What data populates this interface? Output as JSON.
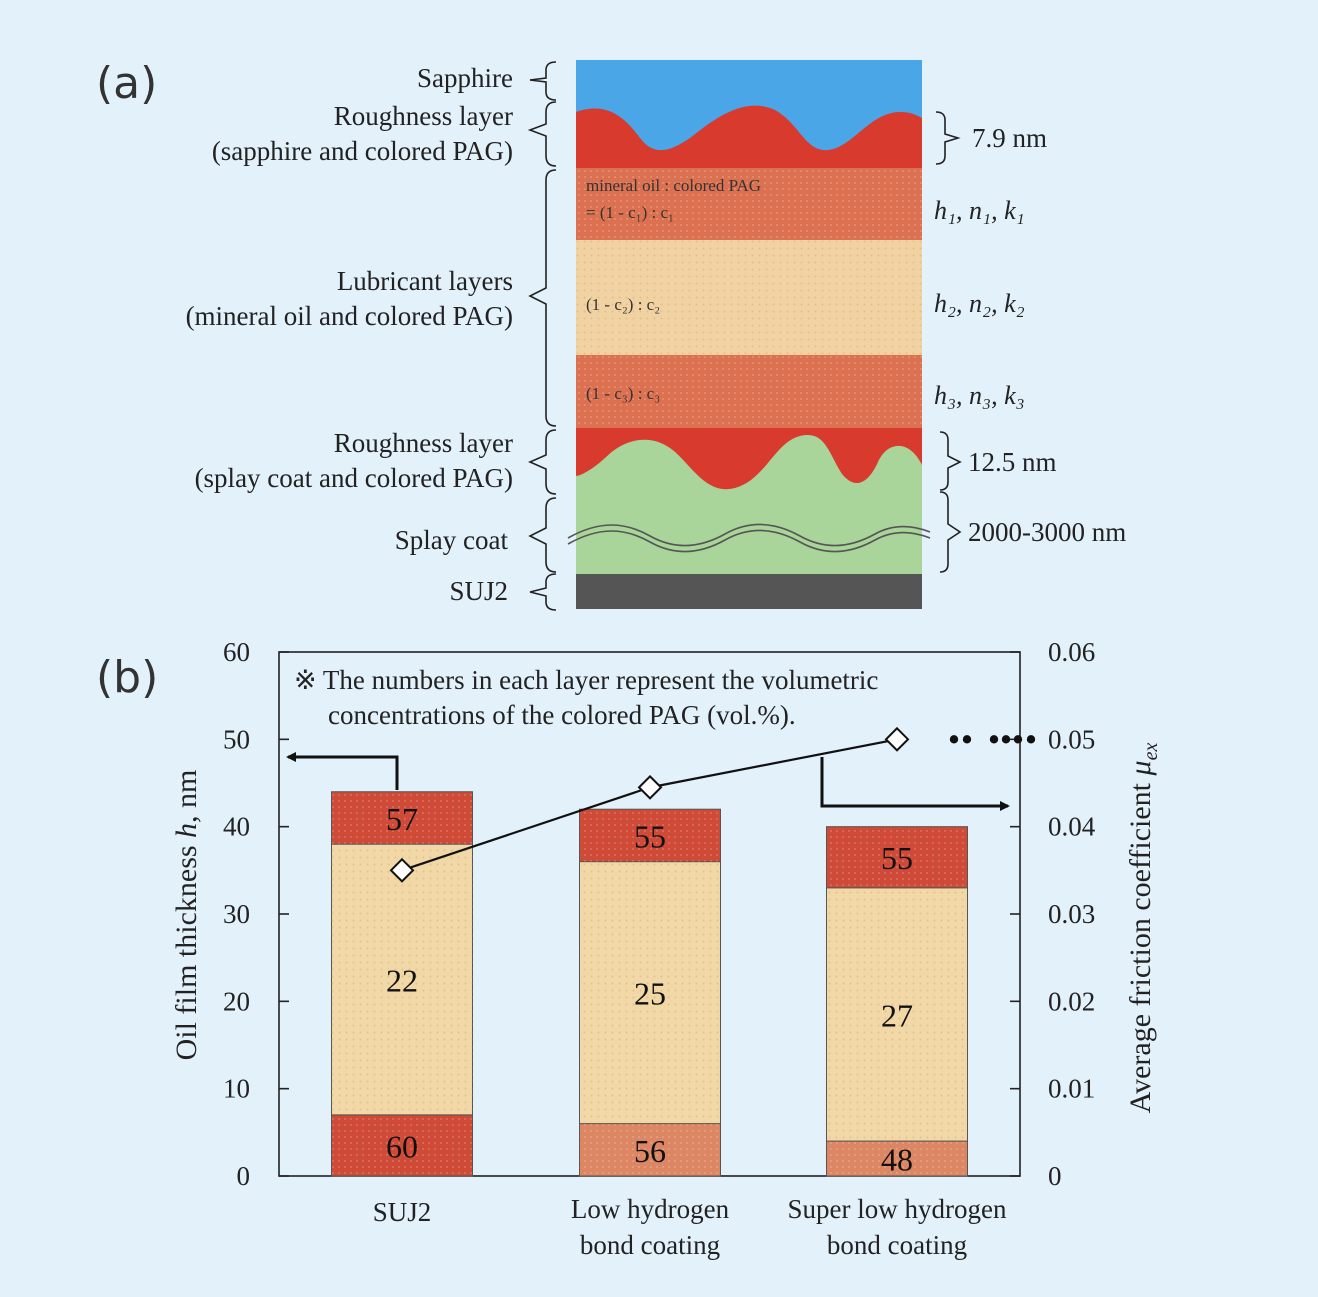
{
  "colors": {
    "background": "#e3f1fb",
    "sapphire": "#4aa6e6",
    "roughness": "#d93a2e",
    "lubricant_high": "#db7150",
    "lubricant_mid": "#f1d3a3",
    "splay_coat": "#a9d49a",
    "suj2_base": "#555555",
    "bar_top": "#cf4a37",
    "bar_mid": "#f1d8a6",
    "bar_bottom_suj2": "#cf4a37",
    "bar_bottom_coating": "#dd8663"
  },
  "panel_a": {
    "label": "(a)",
    "layers": {
      "sapphire": "Sapphire",
      "roughness_top_1": "Roughness layer",
      "roughness_top_2": "(sapphire and colored PAG)",
      "lubricant_1": "Lubricant layers",
      "lubricant_2": "(mineral oil and colored PAG)",
      "roughness_bottom_1": "Roughness layer",
      "roughness_bottom_2": "(splay coat and colored PAG)",
      "splay_coat": "Splay coat",
      "suj2": "SUJ2"
    },
    "inner_text": {
      "l1_a": "mineral oil : colored PAG",
      "l1_b": "= (1 - c₁) : c₁",
      "l2": "(1 - c₂) : c₂",
      "l3": "(1 - c₃) : c₃"
    },
    "right_labels": {
      "top_thickness": "7.9 nm",
      "l1": "h₁, n₁, k₁",
      "l2": "h₂, n₂, k₂",
      "l3": "h₃, n₃, k₃",
      "bottom_thickness": "12.5 nm",
      "coat_thickness": "2000-3000 nm"
    }
  },
  "panel_b": {
    "label": "(b)",
    "note_1": "※ The numbers in each layer represent the volumetric",
    "note_2": "concentrations of the colored PAG (vol.%)."
  },
  "chart_data": {
    "type": "bar",
    "stacked": true,
    "categories": [
      "SUJ2",
      "Low hydrogen bond coating",
      "Super low hydrogen bond coating"
    ],
    "category_label_lines": [
      [
        "SUJ2"
      ],
      [
        "Low hydrogen",
        "bond coating"
      ],
      [
        "Super low hydrogen",
        "bond coating"
      ]
    ],
    "layer_thickness_nm": {
      "bottom": [
        7,
        6,
        4
      ],
      "middle": [
        31,
        30,
        29
      ],
      "top": [
        6,
        6,
        7
      ]
    },
    "layer_labels": {
      "bottom": [
        "60",
        "56",
        "48"
      ],
      "middle": [
        "22",
        "25",
        "27"
      ],
      "top": [
        "57",
        "55",
        "55"
      ]
    },
    "friction_line": {
      "values": [
        0.035,
        0.0445,
        0.05
      ]
    },
    "ylabel": "Oil film thickness h, nm",
    "ylabel_italic": "h",
    "y2label": "Average friction coefficient μex",
    "y2label_mu": "μ",
    "y2label_sub": "ex",
    "ylim": [
      0,
      60
    ],
    "y2lim": [
      0,
      0.06
    ],
    "yticks": [
      "0",
      "10",
      "20",
      "30",
      "40",
      "50",
      "60"
    ],
    "y2ticks": [
      "0",
      "0.01",
      "0.02",
      "0.03",
      "0.04",
      "0.05",
      "0.06"
    ],
    "grid": false
  }
}
